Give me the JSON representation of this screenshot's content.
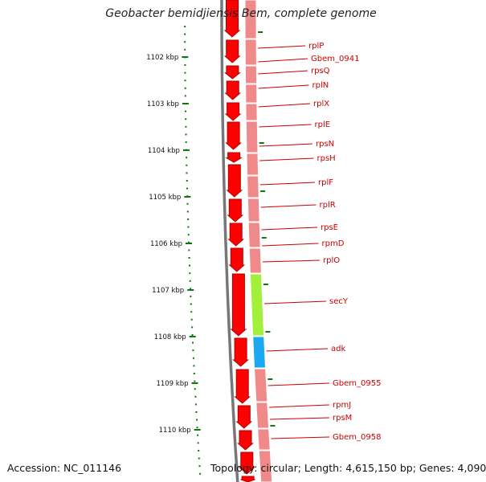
{
  "header": {
    "title": "Geobacter bemidjiensis Bem, complete genome"
  },
  "footer": {
    "accession": "Accession: NC_011146",
    "summary": "Topology: circular; Length: 4,615,150 bp; Genes: 4,090"
  },
  "ruler": {
    "ticks": [
      "1102 kbp",
      "1103 kbp",
      "1104 kbp",
      "1105 kbp",
      "1106 kbp",
      "1107 kbp",
      "1108 kbp",
      "1109 kbp",
      "1110 kbp"
    ]
  },
  "genes": [
    {
      "name": "rplP"
    },
    {
      "name": "Gbem_0941"
    },
    {
      "name": "rpsQ"
    },
    {
      "name": "rplN"
    },
    {
      "name": "rplX"
    },
    {
      "name": "rplE"
    },
    {
      "name": "rpsN"
    },
    {
      "name": "rpsH"
    },
    {
      "name": "rplF"
    },
    {
      "name": "rplR"
    },
    {
      "name": "rpsE"
    },
    {
      "name": "rpmD"
    },
    {
      "name": "rplO"
    },
    {
      "name": "secY"
    },
    {
      "name": "adk"
    },
    {
      "name": "Gbem_0955"
    },
    {
      "name": "rpmJ"
    },
    {
      "name": "rpsM"
    },
    {
      "name": "Gbem_0958"
    }
  ],
  "colors": {
    "cds": "#ff0000",
    "cds_shadow": "#b00000",
    "feature_track": "#f08a8a",
    "secY_track": "#a3f03a",
    "adk_track": "#1aa8f0",
    "label_text": "#cc0000",
    "ruler_tick": "#0a7a0a",
    "backbone": "#777777"
  }
}
